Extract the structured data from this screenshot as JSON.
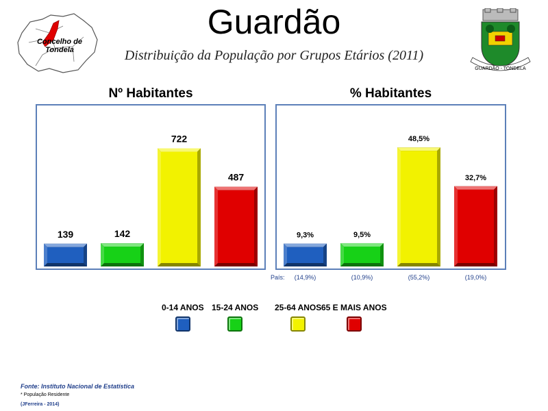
{
  "header": {
    "title": "Guardão",
    "subtitle": "Distribuição da População por Grupos Etários (2011)",
    "map_label": "Concelho de Tondela",
    "coat_text": "GUARDÃO - TONDELA"
  },
  "colors": {
    "blue": "#1f5fbf",
    "green": "#17d117",
    "yellow": "#f2f200",
    "red": "#e00000",
    "panel_border": "#5b7fb8",
    "note_blue": "#1f3e8a"
  },
  "legend": {
    "items": [
      {
        "label": "0-14 ANOS",
        "color": "#1f5fbf"
      },
      {
        "label": "15-24 ANOS",
        "color": "#17d117"
      },
      {
        "label": "25-64 ANOS",
        "color": "#f2f200"
      },
      {
        "label": "65 E MAIS ANOS",
        "color": "#e00000"
      }
    ]
  },
  "chart_data": [
    {
      "type": "bar",
      "title": "Nº Habitantes",
      "categories": [
        "0-14 ANOS",
        "15-24 ANOS",
        "25-64 ANOS",
        "65 E MAIS ANOS"
      ],
      "values": [
        139,
        142,
        722,
        487
      ],
      "labels": [
        "139",
        "142",
        "722",
        "487"
      ],
      "colors": [
        "#1f5fbf",
        "#17d117",
        "#f2f200",
        "#e00000"
      ],
      "ylim": [
        0,
        900
      ]
    },
    {
      "type": "bar",
      "title": "% Habitantes",
      "categories": [
        "0-14 ANOS",
        "15-24 ANOS",
        "25-64 ANOS",
        "65 E MAIS ANOS"
      ],
      "values": [
        9.3,
        9.5,
        48.5,
        32.7
      ],
      "labels": [
        "9,3%",
        "9,5%",
        "48,5%",
        "32,7%"
      ],
      "colors": [
        "#1f5fbf",
        "#17d117",
        "#f2f200",
        "#e00000"
      ],
      "ylim": [
        0,
        60
      ],
      "country_label": "País:",
      "country_values": [
        "(14,9%)",
        "(10,9%)",
        "(55,2%)",
        "(19,0%)"
      ]
    }
  ],
  "footer": {
    "source": "Fonte: Instituto Nacional de Estatística",
    "note": "* População Residente",
    "author": "(JFerreira - 2014)"
  }
}
